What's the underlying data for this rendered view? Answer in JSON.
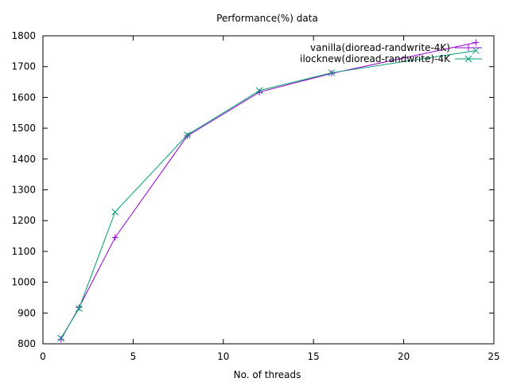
{
  "chart_data": {
    "type": "line",
    "title": "Performance(%) data",
    "xlabel": "No. of threads",
    "ylabel": "",
    "xlim": [
      0,
      25
    ],
    "ylim": [
      800,
      1800
    ],
    "xticks": [
      0,
      5,
      10,
      15,
      20,
      25
    ],
    "yticks": [
      800,
      900,
      1000,
      1100,
      1200,
      1300,
      1400,
      1500,
      1600,
      1700,
      1800
    ],
    "grid": false,
    "legend_position": "top-right",
    "series": [
      {
        "name": "vanilla(dioread-randwrite-4K)",
        "color": "#9400d3",
        "marker": "plus",
        "x": [
          1,
          2,
          4,
          8,
          12,
          16,
          24
        ],
        "y": [
          815,
          918,
          1145,
          1475,
          1617,
          1678,
          1778
        ]
      },
      {
        "name": "ilocknew(dioread-randwrite)-4K",
        "color": "#009e73",
        "marker": "cross",
        "x": [
          1,
          2,
          4,
          8,
          12,
          16,
          24
        ],
        "y": [
          818,
          915,
          1228,
          1478,
          1622,
          1680,
          1752
        ]
      }
    ]
  }
}
